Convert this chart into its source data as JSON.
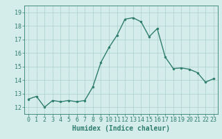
{
  "x": [
    0,
    1,
    2,
    3,
    4,
    5,
    6,
    7,
    8,
    9,
    10,
    11,
    12,
    13,
    14,
    15,
    16,
    17,
    18,
    19,
    20,
    21,
    22,
    23
  ],
  "y": [
    12.6,
    12.8,
    12.0,
    12.5,
    12.4,
    12.5,
    12.4,
    12.5,
    13.5,
    15.3,
    16.4,
    17.3,
    18.5,
    18.6,
    18.3,
    17.2,
    17.8,
    15.7,
    14.85,
    14.9,
    14.8,
    14.55,
    13.85,
    14.1
  ],
  "line_color": "#2E7D6E",
  "marker": "o",
  "marker_size": 2,
  "linewidth": 1.0,
  "bg_color": "#D5EDEA",
  "grid_color": "#AACFCC",
  "xlabel": "Humidex (Indice chaleur)",
  "xlim": [
    -0.5,
    23.5
  ],
  "ylim": [
    11.5,
    19.5
  ],
  "yticks": [
    12,
    13,
    14,
    15,
    16,
    17,
    18,
    19
  ],
  "xticks": [
    0,
    1,
    2,
    3,
    4,
    5,
    6,
    7,
    8,
    9,
    10,
    11,
    12,
    13,
    14,
    15,
    16,
    17,
    18,
    19,
    20,
    21,
    22,
    23
  ],
  "tick_fontsize": 6,
  "xlabel_fontsize": 7,
  "tick_color": "#2E7D6E",
  "spine_color": "#2E7D6E"
}
